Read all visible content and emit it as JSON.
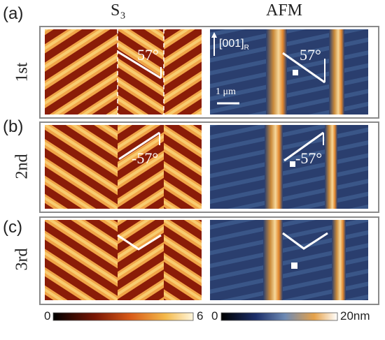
{
  "columns": {
    "left": "S₃",
    "right": "AFM"
  },
  "rows": [
    {
      "letter": "(a)",
      "label": "1st",
      "angle": "57°"
    },
    {
      "letter": "(b)",
      "label": "2nd",
      "angle": "-57°"
    },
    {
      "letter": "(c)",
      "label": "3rd",
      "angle": ""
    }
  ],
  "annotations": {
    "direction_main": "[001]",
    "direction_sub": "R",
    "scale": "1 μm"
  },
  "colorbars": {
    "s3": {
      "min": "0",
      "max": "6"
    },
    "afm": {
      "min": "0",
      "max": "20nm"
    }
  },
  "colors": {
    "s3_dark": "#8a1c08",
    "s3_mid": "#e0662a",
    "s3_light": "#f6c25a",
    "afm_dark": "#1c2a5a",
    "afm_mid": "#3d5a8a",
    "afm_bright": "#f0a040"
  }
}
